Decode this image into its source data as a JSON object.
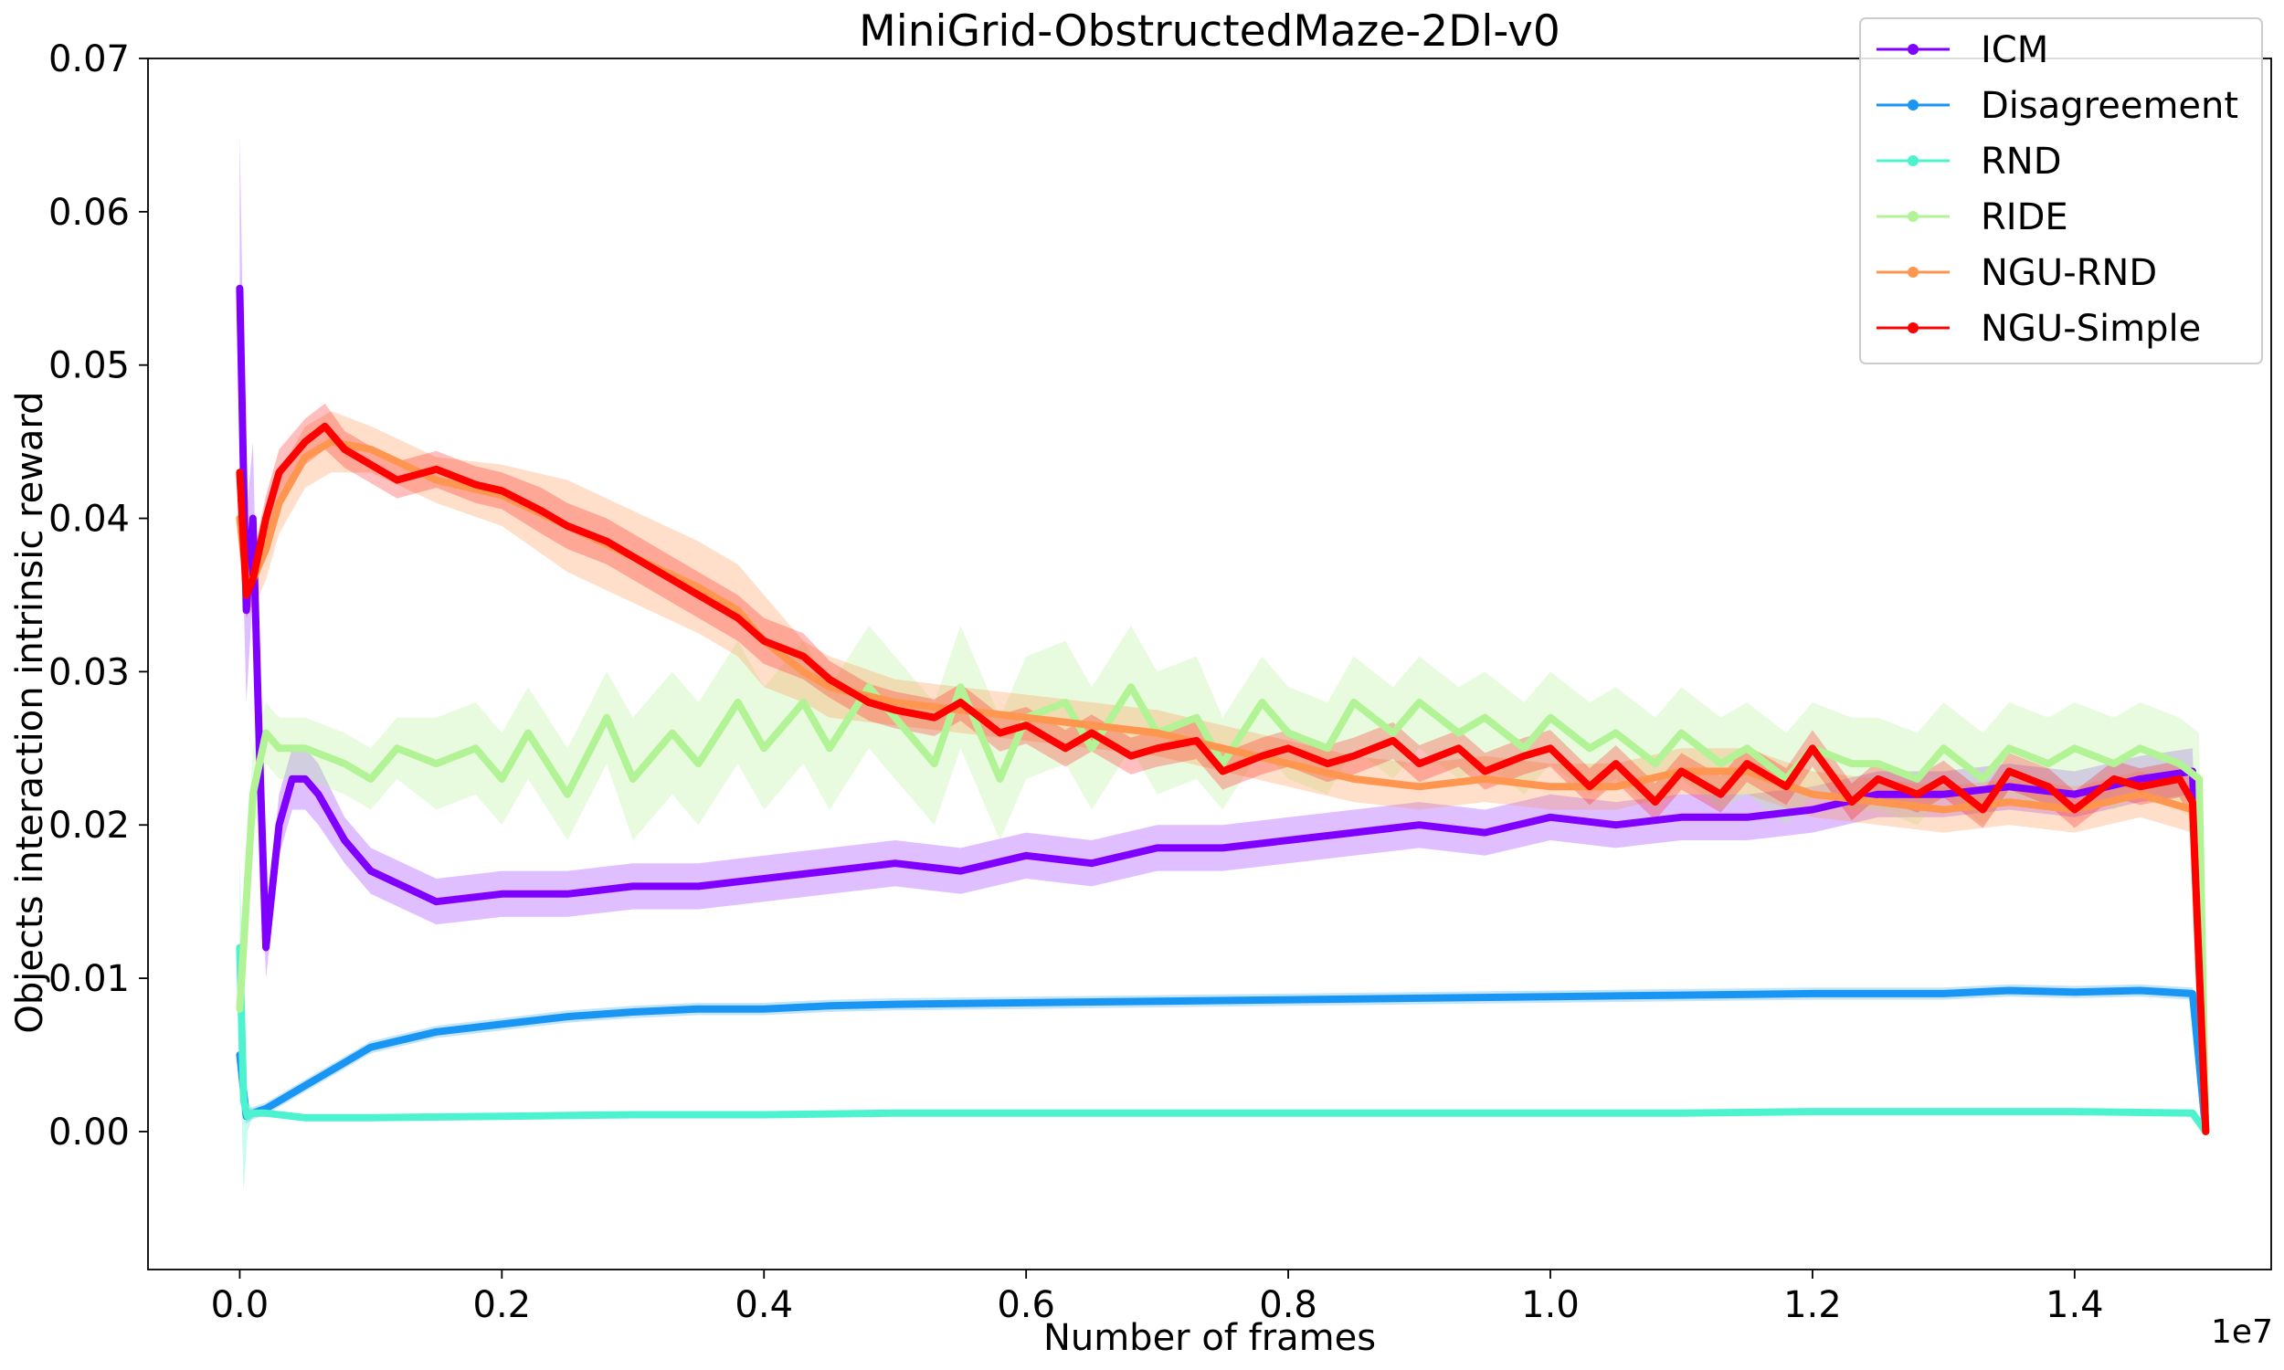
{
  "chart_data": {
    "type": "line",
    "title": "MiniGrid-ObstructedMaze-2Dl-v0",
    "xlabel": "Number of frames",
    "ylabel": "Objects interaction intrinsic reward",
    "x_offset_label": "1e7",
    "xlim": [
      -0.07,
      1.55
    ],
    "ylim": [
      -0.009,
      0.07
    ],
    "xticks": [
      0.0,
      0.2,
      0.4,
      0.6,
      0.8,
      1.0,
      1.2,
      1.4
    ],
    "xtick_labels": [
      "0.0",
      "0.2",
      "0.4",
      "0.6",
      "0.8",
      "1.0",
      "1.2",
      "1.4"
    ],
    "yticks": [
      0.0,
      0.01,
      0.02,
      0.03,
      0.04,
      0.05,
      0.06,
      0.07
    ],
    "ytick_labels": [
      "0.00",
      "0.01",
      "0.02",
      "0.03",
      "0.04",
      "0.05",
      "0.06",
      "0.07"
    ],
    "grid": false,
    "legend_position": "top-right",
    "series": [
      {
        "name": "ICM",
        "color": "#8000ff",
        "band_opacity": 0.25,
        "x": [
          0.0,
          0.005,
          0.01,
          0.015,
          0.02,
          0.03,
          0.04,
          0.05,
          0.06,
          0.08,
          0.1,
          0.15,
          0.2,
          0.25,
          0.3,
          0.35,
          0.4,
          0.45,
          0.5,
          0.55,
          0.6,
          0.65,
          0.7,
          0.75,
          0.8,
          0.85,
          0.9,
          0.95,
          1.0,
          1.05,
          1.1,
          1.15,
          1.2,
          1.25,
          1.3,
          1.35,
          1.4,
          1.45,
          1.49,
          1.5
        ],
        "y": [
          0.055,
          0.034,
          0.04,
          0.025,
          0.012,
          0.02,
          0.023,
          0.023,
          0.022,
          0.019,
          0.017,
          0.015,
          0.0155,
          0.0155,
          0.016,
          0.016,
          0.0165,
          0.017,
          0.0175,
          0.017,
          0.018,
          0.0175,
          0.0185,
          0.0185,
          0.019,
          0.0195,
          0.02,
          0.0195,
          0.0205,
          0.02,
          0.0205,
          0.0205,
          0.021,
          0.022,
          0.022,
          0.0225,
          0.022,
          0.023,
          0.0235,
          0.0
        ],
        "err": [
          0.01,
          0.006,
          0.005,
          0.003,
          0.002,
          0.002,
          0.002,
          0.002,
          0.002,
          0.0015,
          0.0015,
          0.0015,
          0.0015,
          0.0015,
          0.0015,
          0.0015,
          0.0015,
          0.0015,
          0.0015,
          0.0015,
          0.0015,
          0.0015,
          0.0015,
          0.0015,
          0.0015,
          0.0015,
          0.0015,
          0.0015,
          0.0015,
          0.0015,
          0.0015,
          0.0015,
          0.0015,
          0.0015,
          0.0015,
          0.0015,
          0.0015,
          0.0015,
          0.0015,
          0.0
        ]
      },
      {
        "name": "Disagreement",
        "color": "#1996f3",
        "band_opacity": 0.25,
        "x": [
          0.0,
          0.005,
          0.01,
          0.02,
          0.03,
          0.05,
          0.08,
          0.1,
          0.15,
          0.2,
          0.25,
          0.3,
          0.35,
          0.4,
          0.45,
          0.5,
          0.6,
          0.7,
          0.8,
          0.9,
          1.0,
          1.1,
          1.2,
          1.3,
          1.35,
          1.4,
          1.45,
          1.49,
          1.5
        ],
        "y": [
          0.005,
          0.001,
          0.0012,
          0.0015,
          0.002,
          0.003,
          0.0045,
          0.0055,
          0.0065,
          0.007,
          0.0075,
          0.0078,
          0.008,
          0.008,
          0.0082,
          0.0083,
          0.0084,
          0.0085,
          0.0086,
          0.0087,
          0.0088,
          0.0089,
          0.009,
          0.009,
          0.0092,
          0.0091,
          0.0092,
          0.009,
          0.0
        ],
        "err": [
          0.002,
          0.0005,
          0.0004,
          0.0004,
          0.0004,
          0.0004,
          0.0004,
          0.0004,
          0.0004,
          0.0004,
          0.0004,
          0.0004,
          0.0004,
          0.0004,
          0.0004,
          0.0004,
          0.0004,
          0.0004,
          0.0004,
          0.0004,
          0.0004,
          0.0004,
          0.0004,
          0.0004,
          0.0004,
          0.0004,
          0.0004,
          0.0004,
          0.0
        ]
      },
      {
        "name": "RND",
        "color": "#4df3ce",
        "band_opacity": 0.3,
        "x": [
          0.0,
          0.003,
          0.006,
          0.01,
          0.02,
          0.05,
          0.1,
          0.2,
          0.3,
          0.4,
          0.5,
          0.6,
          0.7,
          0.8,
          0.9,
          1.0,
          1.1,
          1.2,
          1.3,
          1.4,
          1.49,
          1.5
        ],
        "y": [
          0.012,
          0.002,
          0.001,
          0.0012,
          0.0012,
          0.0009,
          0.0009,
          0.001,
          0.0011,
          0.0011,
          0.0012,
          0.0012,
          0.0012,
          0.0012,
          0.0012,
          0.0012,
          0.0012,
          0.0013,
          0.0013,
          0.0013,
          0.0012,
          0.0
        ],
        "err": [
          0.006,
          0.006,
          0.001,
          0.0002,
          0.0002,
          0.0002,
          0.0002,
          0.0002,
          0.0002,
          0.0002,
          0.0002,
          0.0002,
          0.0002,
          0.0002,
          0.0002,
          0.0002,
          0.0002,
          0.0002,
          0.0002,
          0.0002,
          0.0002,
          0.0
        ]
      },
      {
        "name": "RIDE",
        "color": "#b2f396",
        "band_opacity": 0.3,
        "x": [
          0.0,
          0.01,
          0.02,
          0.03,
          0.05,
          0.08,
          0.1,
          0.12,
          0.15,
          0.18,
          0.2,
          0.22,
          0.25,
          0.28,
          0.3,
          0.33,
          0.35,
          0.38,
          0.4,
          0.43,
          0.45,
          0.48,
          0.5,
          0.53,
          0.55,
          0.58,
          0.6,
          0.63,
          0.65,
          0.68,
          0.7,
          0.73,
          0.75,
          0.78,
          0.8,
          0.83,
          0.85,
          0.88,
          0.9,
          0.93,
          0.95,
          0.98,
          1.0,
          1.03,
          1.05,
          1.08,
          1.1,
          1.13,
          1.15,
          1.18,
          1.2,
          1.23,
          1.25,
          1.28,
          1.3,
          1.33,
          1.35,
          1.38,
          1.4,
          1.43,
          1.45,
          1.48,
          1.495,
          1.5
        ],
        "y": [
          0.008,
          0.022,
          0.026,
          0.025,
          0.025,
          0.024,
          0.023,
          0.025,
          0.024,
          0.025,
          0.023,
          0.026,
          0.022,
          0.027,
          0.023,
          0.026,
          0.024,
          0.028,
          0.025,
          0.028,
          0.025,
          0.029,
          0.027,
          0.024,
          0.029,
          0.023,
          0.027,
          0.028,
          0.025,
          0.029,
          0.026,
          0.027,
          0.024,
          0.028,
          0.026,
          0.025,
          0.028,
          0.026,
          0.028,
          0.026,
          0.027,
          0.025,
          0.027,
          0.025,
          0.026,
          0.024,
          0.026,
          0.024,
          0.025,
          0.023,
          0.025,
          0.024,
          0.024,
          0.023,
          0.025,
          0.023,
          0.025,
          0.024,
          0.025,
          0.024,
          0.025,
          0.024,
          0.023,
          0.0
        ],
        "err": [
          0.003,
          0.003,
          0.002,
          0.002,
          0.002,
          0.002,
          0.002,
          0.002,
          0.003,
          0.003,
          0.003,
          0.003,
          0.003,
          0.003,
          0.004,
          0.004,
          0.004,
          0.004,
          0.004,
          0.004,
          0.004,
          0.004,
          0.004,
          0.004,
          0.004,
          0.004,
          0.004,
          0.004,
          0.004,
          0.004,
          0.004,
          0.004,
          0.003,
          0.003,
          0.003,
          0.003,
          0.003,
          0.003,
          0.003,
          0.003,
          0.003,
          0.003,
          0.003,
          0.003,
          0.003,
          0.003,
          0.003,
          0.003,
          0.003,
          0.003,
          0.003,
          0.003,
          0.003,
          0.003,
          0.003,
          0.003,
          0.003,
          0.003,
          0.003,
          0.003,
          0.003,
          0.003,
          0.003,
          0.0
        ]
      },
      {
        "name": "NGU-RND",
        "color": "#ff964f",
        "band_opacity": 0.3,
        "x": [
          0.0,
          0.005,
          0.01,
          0.02,
          0.03,
          0.05,
          0.07,
          0.1,
          0.15,
          0.2,
          0.25,
          0.3,
          0.35,
          0.38,
          0.4,
          0.43,
          0.45,
          0.5,
          0.55,
          0.6,
          0.65,
          0.7,
          0.75,
          0.8,
          0.85,
          0.9,
          0.95,
          1.0,
          1.05,
          1.1,
          1.15,
          1.2,
          1.25,
          1.3,
          1.35,
          1.4,
          1.45,
          1.49,
          1.5
        ],
        "y": [
          0.04,
          0.036,
          0.036,
          0.038,
          0.041,
          0.044,
          0.045,
          0.0445,
          0.0425,
          0.0415,
          0.0395,
          0.0375,
          0.0355,
          0.034,
          0.032,
          0.03,
          0.029,
          0.028,
          0.0275,
          0.027,
          0.0265,
          0.026,
          0.025,
          0.024,
          0.023,
          0.0225,
          0.023,
          0.0225,
          0.0225,
          0.0235,
          0.0235,
          0.022,
          0.0215,
          0.021,
          0.0215,
          0.021,
          0.022,
          0.021,
          0.0
        ],
        "err": [
          0.002,
          0.002,
          0.002,
          0.002,
          0.002,
          0.002,
          0.002,
          0.0015,
          0.0015,
          0.002,
          0.003,
          0.003,
          0.003,
          0.003,
          0.003,
          0.002,
          0.002,
          0.0015,
          0.0015,
          0.0015,
          0.0015,
          0.0015,
          0.0015,
          0.0015,
          0.0015,
          0.0015,
          0.0015,
          0.0015,
          0.0015,
          0.0015,
          0.0015,
          0.0015,
          0.0015,
          0.0015,
          0.0015,
          0.0015,
          0.0015,
          0.0015,
          0.0
        ]
      },
      {
        "name": "NGU-Simple",
        "color": "#ff0000",
        "band_opacity": 0.25,
        "x": [
          0.0,
          0.005,
          0.01,
          0.02,
          0.03,
          0.05,
          0.065,
          0.08,
          0.1,
          0.12,
          0.15,
          0.18,
          0.2,
          0.23,
          0.25,
          0.28,
          0.3,
          0.33,
          0.35,
          0.38,
          0.4,
          0.43,
          0.45,
          0.48,
          0.5,
          0.53,
          0.55,
          0.58,
          0.6,
          0.63,
          0.65,
          0.68,
          0.7,
          0.73,
          0.75,
          0.78,
          0.8,
          0.83,
          0.85,
          0.88,
          0.9,
          0.93,
          0.95,
          0.98,
          1.0,
          1.03,
          1.05,
          1.08,
          1.1,
          1.13,
          1.15,
          1.18,
          1.2,
          1.23,
          1.25,
          1.28,
          1.3,
          1.33,
          1.35,
          1.38,
          1.4,
          1.43,
          1.45,
          1.48,
          1.49,
          1.5
        ],
        "y": [
          0.043,
          0.035,
          0.036,
          0.04,
          0.043,
          0.045,
          0.046,
          0.0445,
          0.0435,
          0.0425,
          0.0432,
          0.0422,
          0.0418,
          0.0405,
          0.0395,
          0.0385,
          0.0375,
          0.036,
          0.035,
          0.0335,
          0.032,
          0.031,
          0.0295,
          0.028,
          0.0275,
          0.027,
          0.028,
          0.026,
          0.0265,
          0.025,
          0.026,
          0.0245,
          0.025,
          0.0255,
          0.0235,
          0.0245,
          0.025,
          0.024,
          0.0245,
          0.0255,
          0.024,
          0.025,
          0.0235,
          0.0245,
          0.025,
          0.0225,
          0.024,
          0.0215,
          0.0235,
          0.022,
          0.024,
          0.0225,
          0.025,
          0.0215,
          0.023,
          0.022,
          0.023,
          0.021,
          0.0235,
          0.0225,
          0.021,
          0.023,
          0.0225,
          0.023,
          0.0215,
          0.0
        ],
        "err": [
          0.002,
          0.0015,
          0.0015,
          0.0015,
          0.0015,
          0.0015,
          0.0015,
          0.0012,
          0.0012,
          0.0012,
          0.0012,
          0.0012,
          0.0012,
          0.0015,
          0.0015,
          0.0015,
          0.0015,
          0.0015,
          0.0015,
          0.0015,
          0.0015,
          0.0015,
          0.0012,
          0.0012,
          0.0012,
          0.0012,
          0.0012,
          0.0012,
          0.0012,
          0.0012,
          0.0012,
          0.0012,
          0.0012,
          0.0012,
          0.0012,
          0.0012,
          0.0012,
          0.0012,
          0.0012,
          0.0012,
          0.0012,
          0.0012,
          0.0012,
          0.0012,
          0.0012,
          0.0012,
          0.0012,
          0.0012,
          0.0012,
          0.0012,
          0.0012,
          0.0012,
          0.0012,
          0.0012,
          0.0012,
          0.0012,
          0.0012,
          0.0012,
          0.0012,
          0.0012,
          0.0012,
          0.0012,
          0.0012,
          0.0012,
          0.0012,
          0.0
        ]
      }
    ]
  }
}
